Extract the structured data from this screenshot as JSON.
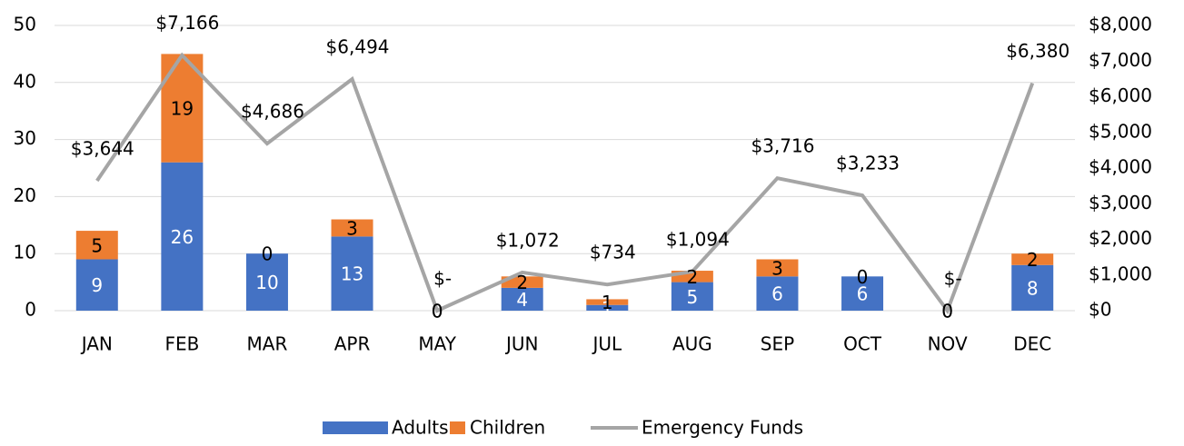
{
  "chart_data": {
    "type": "bar-line",
    "categories": [
      "JAN",
      "FEB",
      "MAR",
      "APR",
      "MAY",
      "JUN",
      "JUL",
      "AUG",
      "SEP",
      "OCT",
      "NOV",
      "DEC"
    ],
    "series": [
      {
        "name": "Adults",
        "color": "#4472c4",
        "type": "bar",
        "values": [
          9,
          26,
          10,
          13,
          0,
          4,
          1,
          5,
          6,
          6,
          0,
          8
        ]
      },
      {
        "name": "Children",
        "color": "#ed7d31",
        "type": "bar",
        "values": [
          5,
          19,
          0,
          3,
          0,
          2,
          1,
          2,
          3,
          0,
          0,
          2
        ]
      },
      {
        "name": "Emergency Funds",
        "color": "#a5a5a5",
        "type": "line",
        "axis": "y2",
        "values": [
          3644,
          7166,
          4686,
          6494,
          0,
          1072,
          734,
          1094,
          3716,
          3233,
          0,
          6380
        ],
        "value_labels": [
          "$3,644",
          "$7,166",
          "$4,686",
          "$6,494",
          "$-",
          "$1,072",
          "$734",
          "$1,094",
          "$3,716",
          "$3,233",
          "$-",
          "$6,380"
        ]
      }
    ],
    "ylim": [
      0,
      50
    ],
    "yticks": [
      0,
      10,
      20,
      30,
      40,
      50
    ],
    "y2lim": [
      0,
      8000
    ],
    "y2ticks": [
      {
        "value": 0,
        "label": "$0"
      },
      {
        "value": 1000,
        "label": "$1,000"
      },
      {
        "value": 2000,
        "label": "$2,000"
      },
      {
        "value": 3000,
        "label": "$3,000"
      },
      {
        "value": 4000,
        "label": "$4,000"
      },
      {
        "value": 5000,
        "label": "$5,000"
      },
      {
        "value": 6000,
        "label": "$6,000"
      },
      {
        "value": 7000,
        "label": "$7,000"
      },
      {
        "value": 8000,
        "label": "$8,000"
      }
    ],
    "grid": true,
    "legend": "bottom"
  }
}
